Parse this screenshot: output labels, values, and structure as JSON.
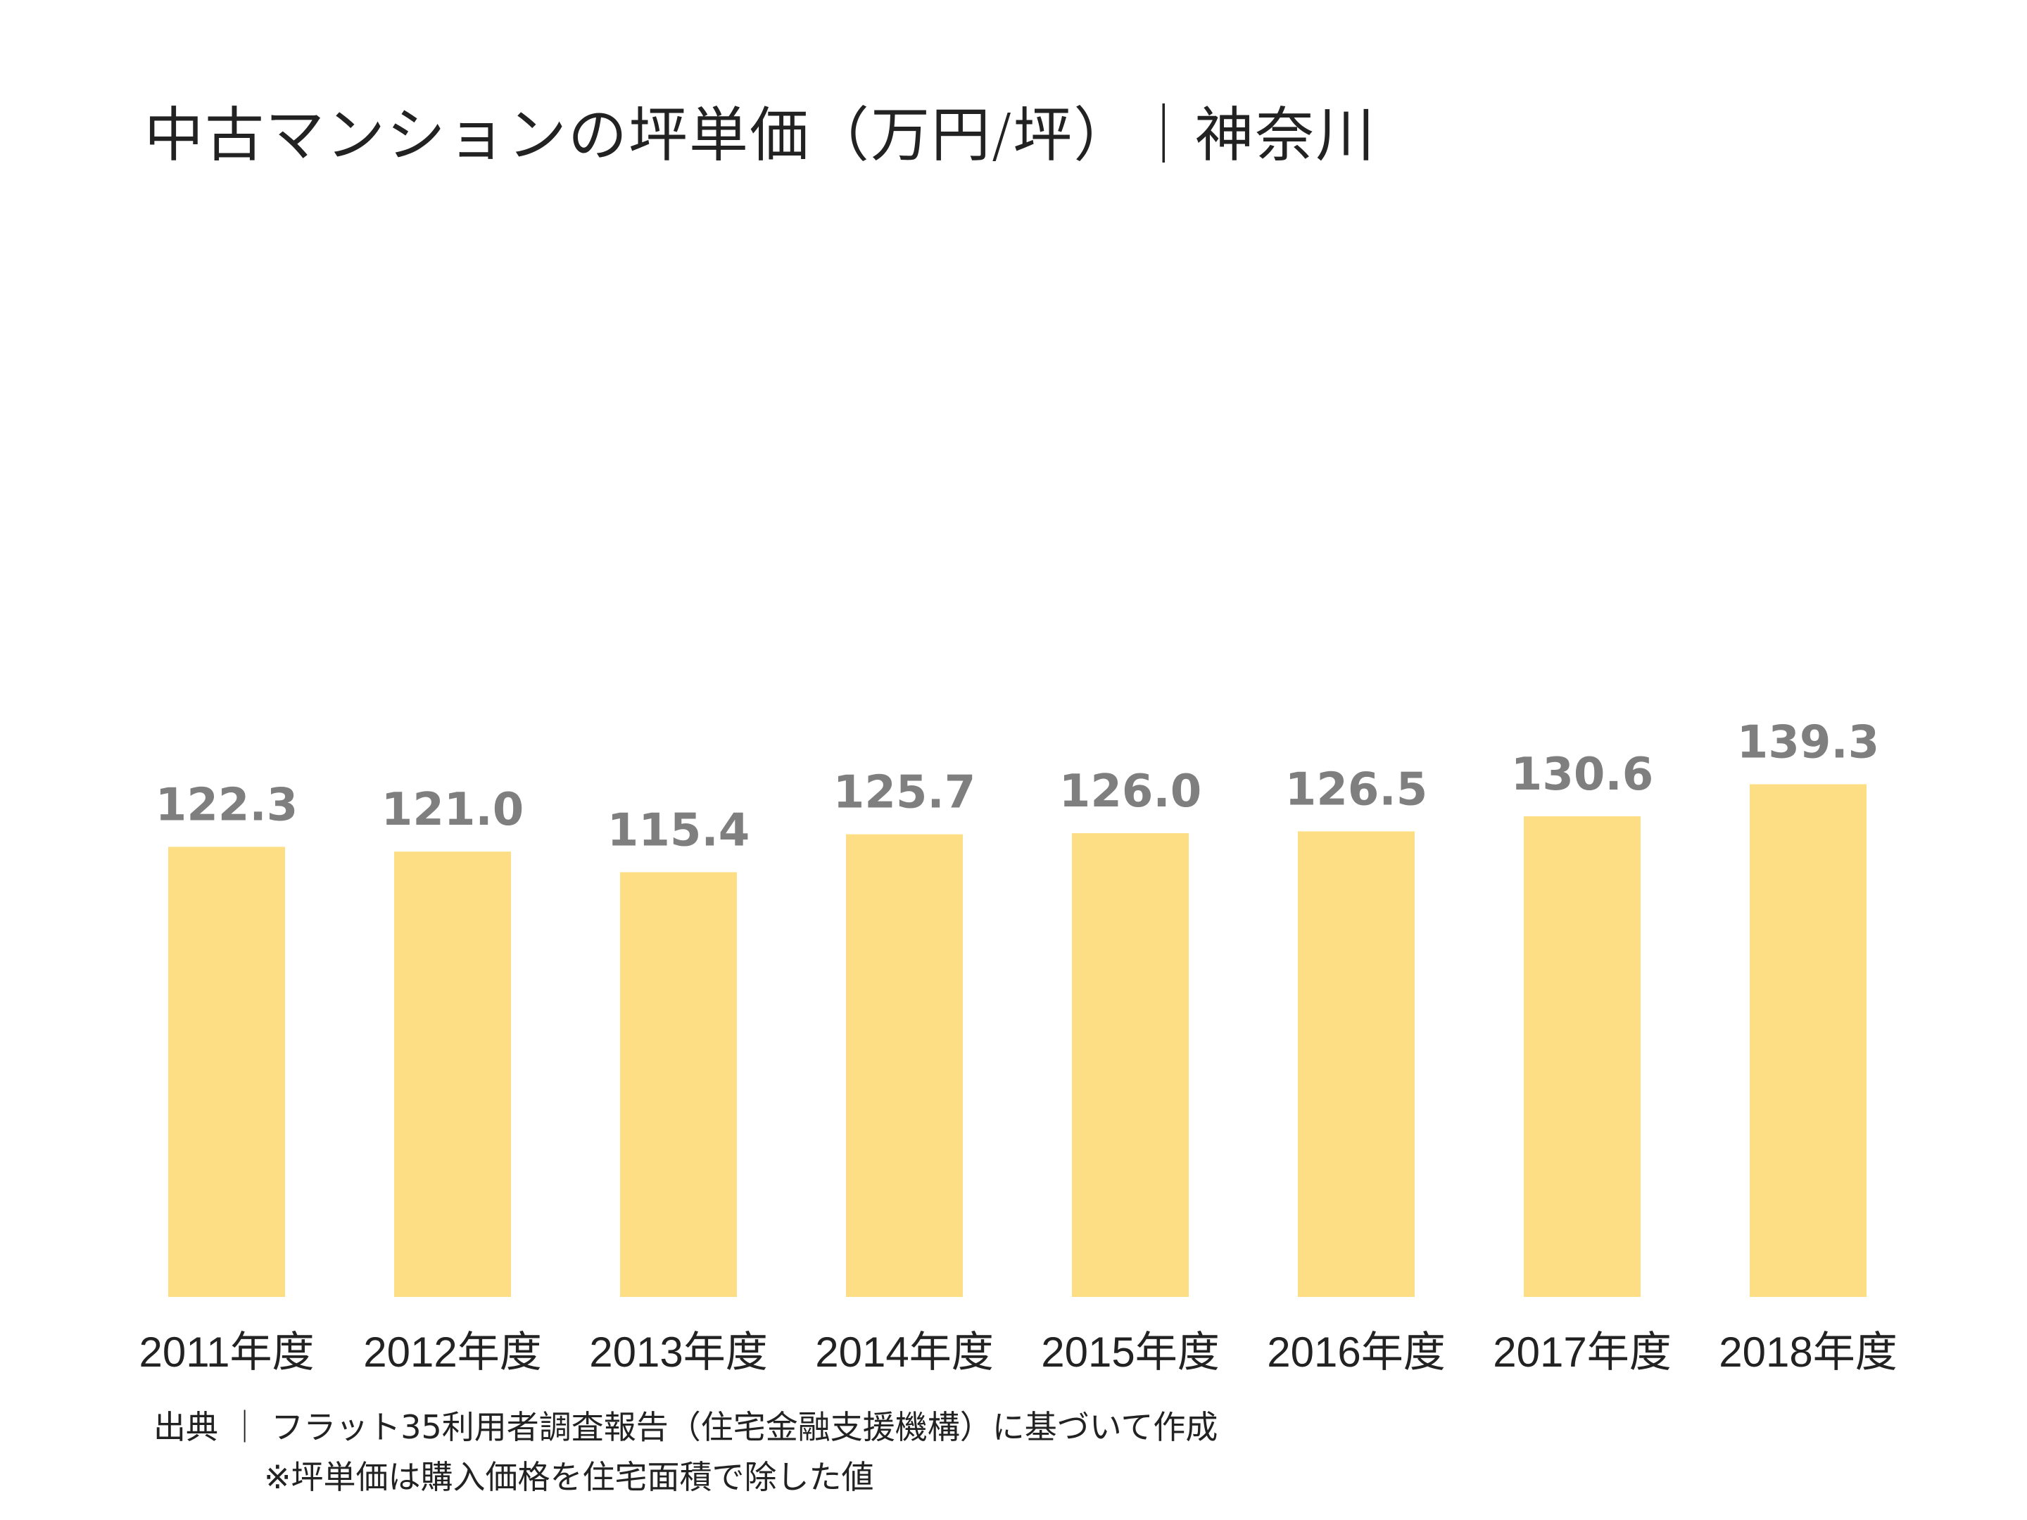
{
  "chart_data": {
    "type": "bar",
    "title": "中古マンションの坪単価（万円/坪）｜神奈川",
    "categories": [
      "2011年度",
      "2012年度",
      "2013年度",
      "2014年度",
      "2015年度",
      "2016年度",
      "2017年度",
      "2018年度"
    ],
    "values": [
      122.3,
      121.0,
      115.4,
      125.7,
      126.0,
      126.5,
      130.6,
      139.3
    ],
    "value_labels": [
      "122.3",
      "121.0",
      "115.4",
      "125.7",
      "126.0",
      "126.5",
      "130.6",
      "139.3"
    ],
    "ylim": [
      0,
      180
    ],
    "grid": false,
    "legend": "none",
    "bar_color": "#FDDE84",
    "value_label_color": "#7F7F7F",
    "category_label_color": "#222222"
  },
  "footnotes": {
    "source": "出典 ｜ フラット35利用者調査報告（住宅金融支援機構）に基づいて作成",
    "note": "※坪単価は購入価格を住宅面積で除した値"
  }
}
